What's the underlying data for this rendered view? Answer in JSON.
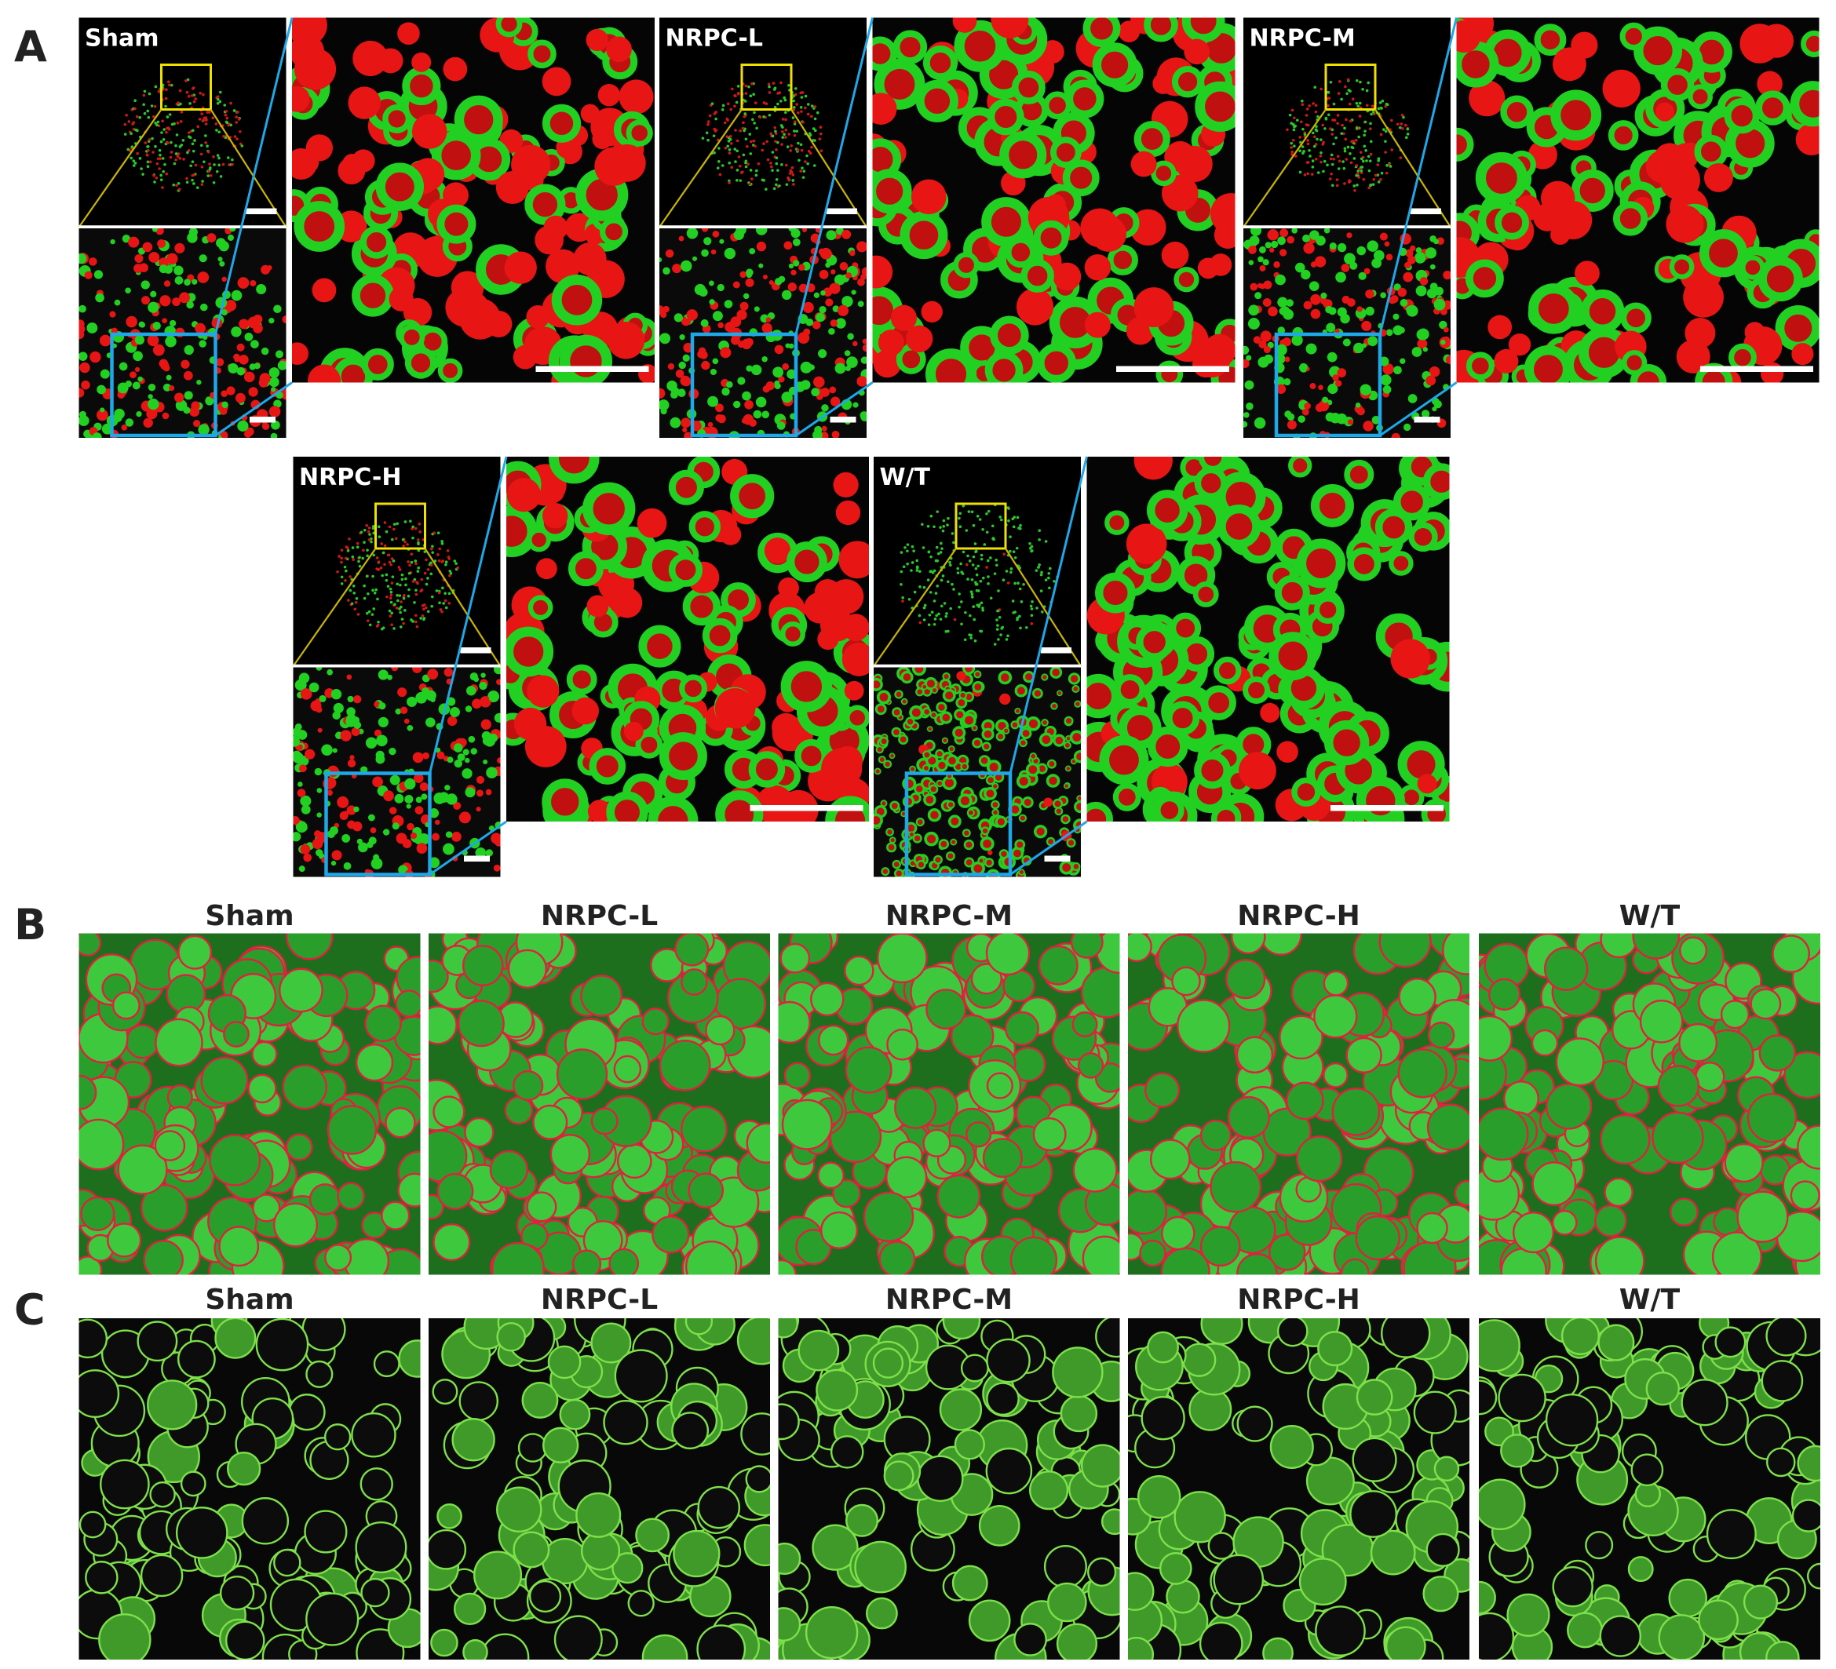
{
  "panel_a": {
    "label": "A",
    "groups": [
      "Sham",
      "NRPC-L",
      "NRPC-M",
      "NRPC-H",
      "W/T"
    ]
  },
  "panel_b": {
    "label": "B",
    "groups": [
      "Sham",
      "NRPC-L",
      "NRPC-M",
      "NRPC-H",
      "W/T"
    ]
  },
  "panel_c": {
    "label": "C",
    "groups": [
      "Sham",
      "NRPC-L",
      "NRPC-M",
      "NRPC-H",
      "W/T"
    ]
  }
}
